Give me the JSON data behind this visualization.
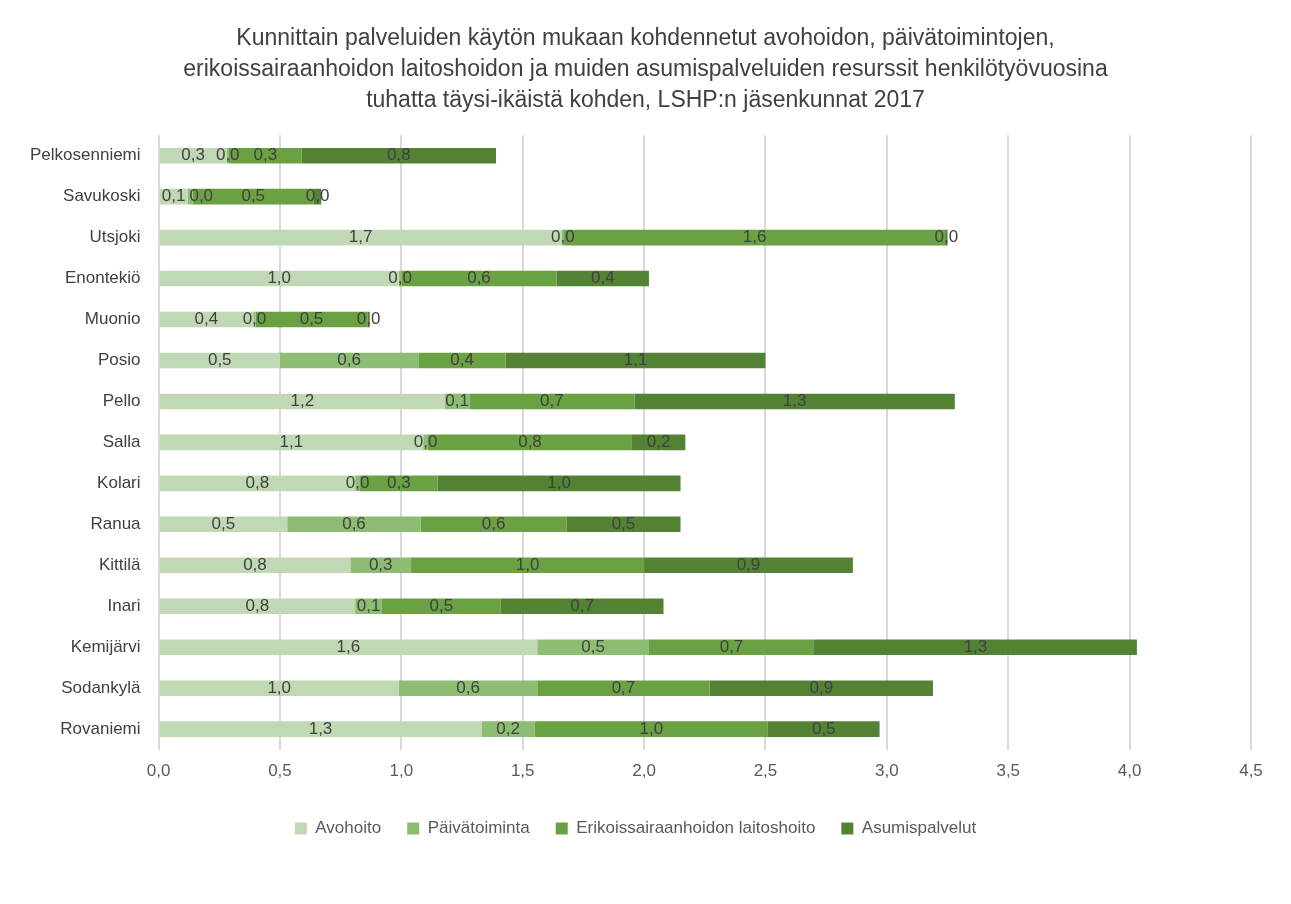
{
  "chart_data": {
    "type": "bar",
    "orientation": "horizontal",
    "stacked": true,
    "title": "Kunnittain palveluiden käytön mukaan kohdennetut avohoidon, päivätoimintojen, erikoissairaanhoidon laitoshoidon ja muiden asumispalveluiden resurssit henkilötyövuosina tuhatta täysi-ikäistä kohden, LSHP:n jäsenkunnat 2017",
    "categories": [
      "Pelkosenniemi",
      "Savukoski",
      "Utsjoki",
      "Enontekiö",
      "Muonio",
      "Posio",
      "Pello",
      "Salla",
      "Kolari",
      "Ranua",
      "Kittilä",
      "Inari",
      "Kemijärvi",
      "Sodankylä",
      "Rovaniemi"
    ],
    "series": [
      {
        "name": "Avohoito",
        "color": "#c0d9b4",
        "values": [
          0.28,
          0.12,
          1.66,
          0.99,
          0.39,
          0.5,
          1.18,
          1.09,
          0.81,
          0.53,
          0.79,
          0.81,
          1.56,
          0.99,
          1.33
        ],
        "value_labels": [
          "0,3",
          "0,1",
          "1,7",
          "1,0",
          "0,4",
          "0,5",
          "1,2",
          "1,1",
          "0,8",
          "0,5",
          "0,8",
          "0,8",
          "1,6",
          "1,0",
          "1,3"
        ]
      },
      {
        "name": "Päivätoiminta",
        "color": "#8dbc73",
        "values": [
          0.01,
          0.02,
          0.01,
          0.01,
          0.01,
          0.57,
          0.1,
          0.02,
          0.02,
          0.55,
          0.25,
          0.11,
          0.46,
          0.57,
          0.22
        ],
        "value_labels": [
          "0,0",
          "0,0",
          "0,0",
          "0,0",
          "0,0",
          "0,6",
          "0,1",
          "0,0",
          "0,0",
          "0,6",
          "0,3",
          "0,1",
          "0,5",
          "0,6",
          "0,2"
        ]
      },
      {
        "name": "Erikoissairaanhoidon laitoshoito",
        "color": "#6aa142",
        "values": [
          0.3,
          0.5,
          1.57,
          0.64,
          0.46,
          0.36,
          0.68,
          0.84,
          0.32,
          0.6,
          0.96,
          0.49,
          0.68,
          0.71,
          0.96
        ],
        "value_labels": [
          "0,3",
          "0,5",
          "1,6",
          "0,6",
          "0,5",
          "0,4",
          "0,7",
          "0,8",
          "0,3",
          "0,6",
          "1,0",
          "0,5",
          "0,7",
          "0,7",
          "1,0"
        ]
      },
      {
        "name": "Asumispalvelut",
        "color": "#548235",
        "values": [
          0.8,
          0.03,
          0.01,
          0.38,
          0.01,
          1.07,
          1.32,
          0.22,
          1.0,
          0.47,
          0.86,
          0.67,
          1.33,
          0.92,
          0.46
        ],
        "value_labels": [
          "0,8",
          "0,0",
          "0,0",
          "0,4",
          "0,0",
          "1,1",
          "1,3",
          "0,2",
          "1,0",
          "0,5",
          "0,9",
          "0,7",
          "1,3",
          "0,9",
          "0,5"
        ]
      }
    ],
    "xlim": [
      0,
      4.5
    ],
    "xticks": [
      {
        "value": 0,
        "label": "0,0"
      },
      {
        "value": 0.5,
        "label": "0,5"
      },
      {
        "value": 1,
        "label": "1,0"
      },
      {
        "value": 1.5,
        "label": "1,5"
      },
      {
        "value": 2,
        "label": "2,0"
      },
      {
        "value": 2.5,
        "label": "2,5"
      },
      {
        "value": 3,
        "label": "3,0"
      },
      {
        "value": 3.5,
        "label": "3,5"
      },
      {
        "value": 4,
        "label": "4,0"
      },
      {
        "value": 4.5,
        "label": "4,5"
      }
    ],
    "grid": "x",
    "legend": "bottom"
  }
}
